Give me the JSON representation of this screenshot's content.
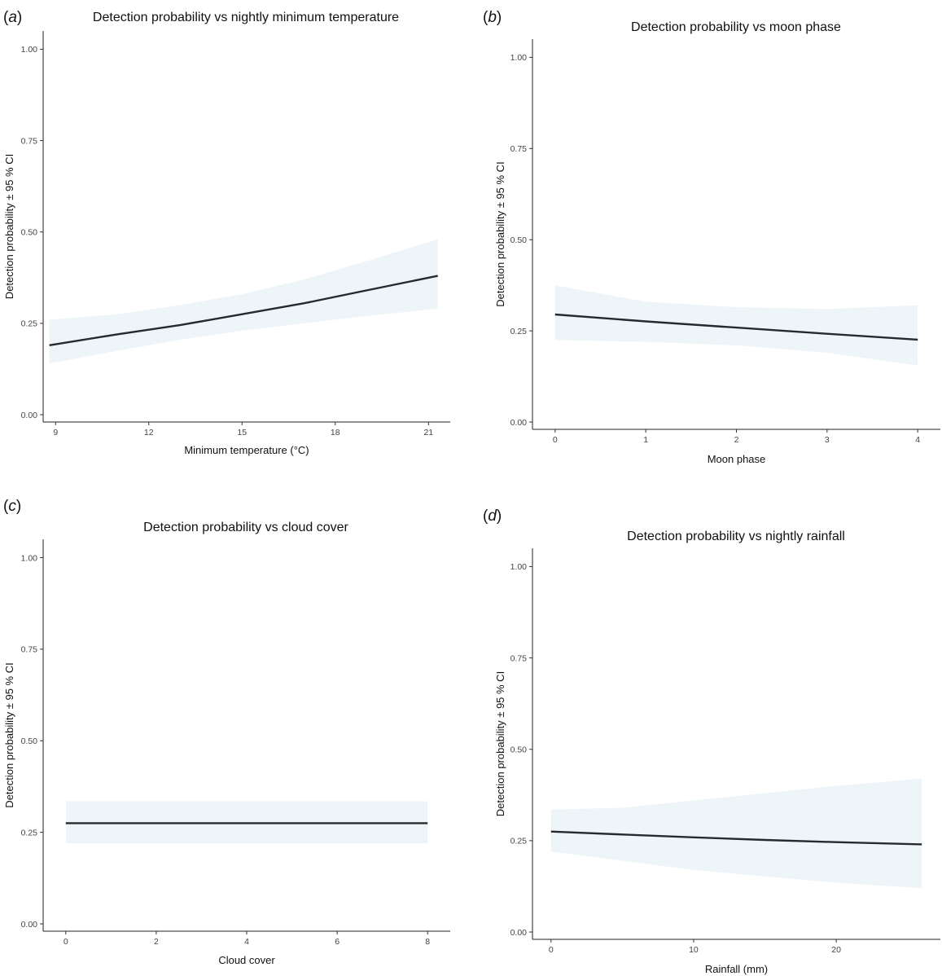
{
  "chart_data": [
    {
      "id": "a",
      "type": "line",
      "panel_label": "a",
      "title": "Detection probability vs nightly minimum temperature",
      "xlabel": "Minimum temperature (°C)",
      "ylabel": "Detection probability ± 95 % CI",
      "xlim": [
        8.6,
        21.7
      ],
      "ylim": [
        -0.02,
        1.05
      ],
      "x_ticks": [
        9,
        12,
        15,
        18,
        21
      ],
      "y_ticks": [
        0.0,
        0.25,
        0.5,
        0.75,
        1.0
      ],
      "y_tick_labels": [
        "0.00",
        "0.25",
        "0.50",
        "0.75",
        "1.00"
      ],
      "series": [
        {
          "name": "Detection probability",
          "x": [
            8.8,
            11,
            13,
            15,
            17,
            19,
            21.3
          ],
          "y": [
            0.19,
            0.22,
            0.245,
            0.275,
            0.305,
            0.34,
            0.38
          ],
          "ci_lower": [
            0.14,
            0.175,
            0.205,
            0.23,
            0.25,
            0.27,
            0.29
          ],
          "ci_upper": [
            0.26,
            0.275,
            0.3,
            0.33,
            0.37,
            0.42,
            0.48
          ]
        }
      ]
    },
    {
      "id": "b",
      "type": "line",
      "panel_label": "b",
      "title": "Detection probability vs moon phase",
      "xlabel": "Moon phase",
      "ylabel": "Detection probability ± 95 % CI",
      "xlim": [
        -0.25,
        4.25
      ],
      "ylim": [
        -0.02,
        1.05
      ],
      "x_ticks": [
        0,
        1,
        2,
        3,
        4
      ],
      "y_ticks": [
        0.0,
        0.25,
        0.5,
        0.75,
        1.0
      ],
      "y_tick_labels": [
        "0.00",
        "0.25",
        "0.50",
        "0.75",
        "1.00"
      ],
      "series": [
        {
          "name": "Detection probability",
          "x": [
            0,
            1,
            2,
            3,
            4
          ],
          "y": [
            0.295,
            0.276,
            0.259,
            0.242,
            0.226
          ],
          "ci_lower": [
            0.225,
            0.22,
            0.21,
            0.19,
            0.155
          ],
          "ci_upper": [
            0.375,
            0.33,
            0.315,
            0.31,
            0.32
          ]
        }
      ]
    },
    {
      "id": "c",
      "type": "line",
      "panel_label": "c",
      "title": "Detection probability vs cloud cover",
      "xlabel": "Cloud cover",
      "ylabel": "Detection probability ± 95 % CI",
      "xlim": [
        -0.5,
        8.5
      ],
      "ylim": [
        -0.02,
        1.05
      ],
      "x_ticks": [
        0,
        2,
        4,
        6,
        8
      ],
      "y_ticks": [
        0.0,
        0.25,
        0.5,
        0.75,
        1.0
      ],
      "y_tick_labels": [
        "0.00",
        "0.25",
        "0.50",
        "0.75",
        "1.00"
      ],
      "series": [
        {
          "name": "Detection probability",
          "x": [
            0,
            8
          ],
          "y": [
            0.275,
            0.275
          ],
          "ci_lower": [
            0.22,
            0.22
          ],
          "ci_upper": [
            0.335,
            0.335
          ]
        }
      ]
    },
    {
      "id": "d",
      "type": "line",
      "panel_label": "d",
      "title": "Detection probability vs nightly rainfall",
      "xlabel": "Rainfall (mm)",
      "ylabel": "Detection probability ± 95 % CI",
      "xlim": [
        -1.3,
        27.3
      ],
      "ylim": [
        -0.02,
        1.05
      ],
      "x_ticks": [
        0,
        10,
        20
      ],
      "y_ticks": [
        0.0,
        0.25,
        0.5,
        0.75,
        1.0
      ],
      "y_tick_labels": [
        "0.00",
        "0.25",
        "0.50",
        "0.75",
        "1.00"
      ],
      "series": [
        {
          "name": "Detection probability",
          "x": [
            0,
            5,
            10,
            15,
            20,
            26
          ],
          "y": [
            0.275,
            0.267,
            0.259,
            0.252,
            0.246,
            0.24
          ],
          "ci_lower": [
            0.22,
            0.195,
            0.17,
            0.152,
            0.135,
            0.12
          ],
          "ci_upper": [
            0.335,
            0.34,
            0.36,
            0.38,
            0.4,
            0.42
          ]
        }
      ]
    }
  ]
}
